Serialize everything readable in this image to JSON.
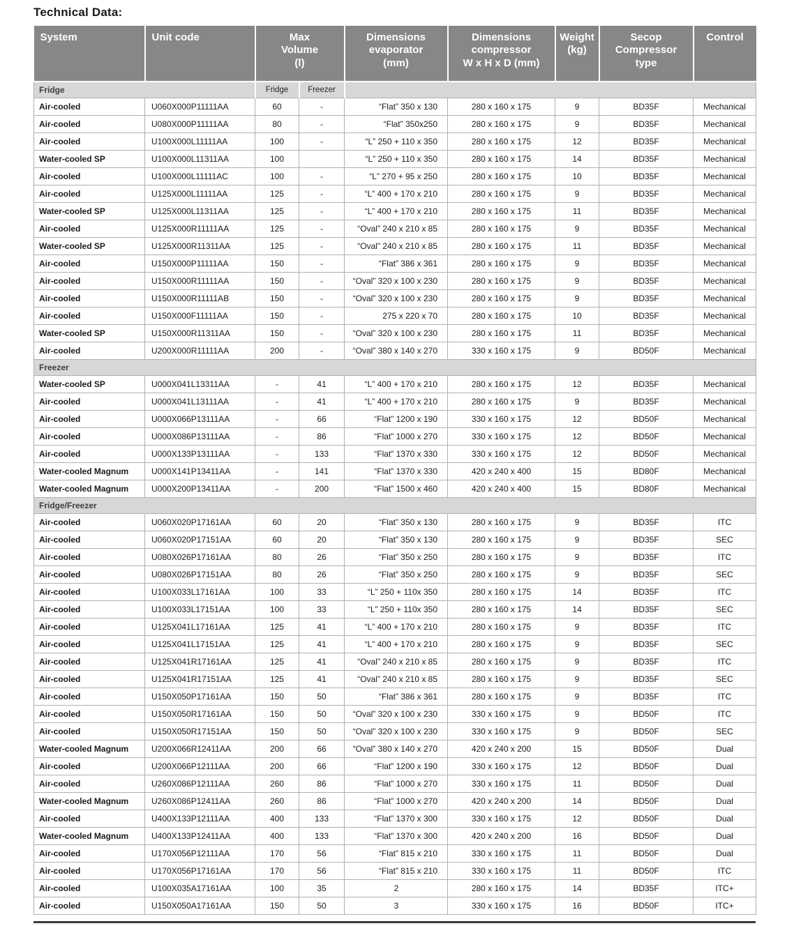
{
  "page_title": "Technical Data:",
  "colors": {
    "header_bg": "#878787",
    "header_text": "#ffffff",
    "section_band_bg": "#d7d7d7",
    "grid_border": "#b0b0b0",
    "body_text": "#1a1a1a",
    "system_text": "#4b4b4b"
  },
  "table": {
    "header": {
      "system": "System",
      "unit_code": "Unit code",
      "max_volume": "Max\nVolume\n(l)",
      "dim_evaporator": "Dimensions\nevaporator\n(mm)",
      "dim_compressor": "Dimensions\ncompressor\nW x H x D (mm)",
      "weight": "Weight\n(kg)",
      "compressor_type": "Secop\nCompressor\ntype",
      "control": "Control"
    },
    "row_fields": [
      "system",
      "unit_code",
      "max_volume_fridge_l",
      "max_volume_freezer_l",
      "dimensions_evaporator_mm",
      "dimensions_compressor_mm",
      "weight_kg",
      "secop_compressor_type",
      "control"
    ],
    "sections": [
      {
        "label": "Fridge",
        "sublabels": {
          "fridge": "Fridge",
          "freezer": "Freezer"
        },
        "rows": [
          [
            "Air-cooled",
            "U060X000P11111AA",
            "60",
            "-",
            "“Flat” 350 x 130",
            "280 x 160 x 175",
            "9",
            "BD35F",
            "Mechanical"
          ],
          [
            "Air-cooled",
            "U080X000P11111AA",
            "80",
            "-",
            "“Flat” 350x250",
            "280 x 160 x 175",
            "9",
            "BD35F",
            "Mechanical"
          ],
          [
            "Air-cooled",
            "U100X000L11111AA",
            "100",
            "-",
            "“L” 250 + 110 x 350",
            "280 x 160 x 175",
            "12",
            "BD35F",
            "Mechanical"
          ],
          [
            "Water-cooled SP",
            "U100X000L11311AA",
            "100",
            "",
            "“L” 250 + 110 x 350",
            "280 x 160 x 175",
            "14",
            "BD35F",
            "Mechanical"
          ],
          [
            "Air-cooled",
            "U100X000L11111AC",
            "100",
            "-",
            "“L” 270 + 95 x 250",
            "280 x 160 x 175",
            "10",
            "BD35F",
            "Mechanical"
          ],
          [
            "Air-cooled",
            "U125X000L11111AA",
            "125",
            "-",
            "“L” 400 + 170 x 210",
            "280 x 160 x 175",
            "9",
            "BD35F",
            "Mechanical"
          ],
          [
            "Water-cooled SP",
            "U125X000L11311AA",
            "125",
            "-",
            "“L” 400 + 170 x 210",
            "280 x 160 x 175",
            "11",
            "BD35F",
            "Mechanical"
          ],
          [
            "Air-cooled",
            "U125X000R11111AA",
            "125",
            "-",
            "“Oval” 240 x 210 x 85",
            "280 x 160 x 175",
            "9",
            "BD35F",
            "Mechanical"
          ],
          [
            "Water-cooled SP",
            "U125X000R11311AA",
            "125",
            "-",
            "“Oval” 240 x 210 x 85",
            "280 x 160 x 175",
            "11",
            "BD35F",
            "Mechanical"
          ],
          [
            "Air-cooled",
            "U150X000P11111AA",
            "150",
            "-",
            "“Flat” 386 x 361",
            "280 x 160 x 175",
            "9",
            "BD35F",
            "Mechanical"
          ],
          [
            "Air-cooled",
            "U150X000R11111AA",
            "150",
            "-",
            "“Oval” 320 x 100 x 230",
            "280 x 160 x 175",
            "9",
            "BD35F",
            "Mechanical"
          ],
          [
            "Air-cooled",
            "U150X000R11111AB",
            "150",
            "-",
            "“Oval” 320 x 100 x 230",
            "280 x 160 x 175",
            "9",
            "BD35F",
            "Mechanical"
          ],
          [
            "Air-cooled",
            "U150X000F11111AA",
            "150",
            "-",
            "275 x 220 x 70",
            "280 x 160 x 175",
            "10",
            "BD35F",
            "Mechanical"
          ],
          [
            "Water-cooled SP",
            "U150X000R11311AA",
            "150",
            "-",
            "“Oval” 320 x 100 x 230",
            "280 x 160 x 175",
            "11",
            "BD35F",
            "Mechanical"
          ],
          [
            "Air-cooled",
            "U200X000R11111AA",
            "200",
            "-",
            "“Oval” 380 x 140 x 270",
            "330 x 160 x 175",
            "9",
            "BD50F",
            "Mechanical"
          ]
        ]
      },
      {
        "label": "Freezer",
        "rows": [
          [
            "Water-cooled SP",
            "U000X041L13311AA",
            "-",
            "41",
            "“L” 400 + 170 x 210",
            "280 x 160 x 175",
            "12",
            "BD35F",
            "Mechanical"
          ],
          [
            "Air-cooled",
            "U000X041L13111AA",
            "-",
            "41",
            "“L” 400 + 170 x 210",
            "280 x 160 x 175",
            "9",
            "BD35F",
            "Mechanical"
          ],
          [
            "Air-cooled",
            "U000X066P13111AA",
            "-",
            "66",
            "“Flat” 1200 x 190",
            "330 x 160 x 175",
            "12",
            "BD50F",
            "Mechanical"
          ],
          [
            "Air-cooled",
            "U000X086P13111AA",
            "-",
            "86",
            "“Flat” 1000 x 270",
            "330 x 160 x 175",
            "12",
            "BD50F",
            "Mechanical"
          ],
          [
            "Air-cooled",
            "U000X133P13111AA",
            "-",
            "133",
            "“Flat” 1370 x 330",
            "330 x 160 x 175",
            "12",
            "BD50F",
            "Mechanical"
          ],
          [
            "Water-cooled Magnum",
            "U000X141P13411AA",
            "-",
            "141",
            "“Flat” 1370 x 330",
            "420 x 240 x 400",
            "15",
            "BD80F",
            "Mechanical"
          ],
          [
            "Water-cooled Magnum",
            "U000X200P13411AA",
            "-",
            "200",
            "“Flat” 1500 x 460",
            "420 x 240 x 400",
            "15",
            "BD80F",
            "Mechanical"
          ]
        ]
      },
      {
        "label": "Fridge/Freezer",
        "rows": [
          [
            "Air-cooled",
            "U060X020P17161AA",
            "60",
            "20",
            "“Flat” 350 x 130",
            "280 x 160 x 175",
            "9",
            "BD35F",
            "ITC"
          ],
          [
            "Air-cooled",
            "U060X020P17151AA",
            "60",
            "20",
            "“Flat” 350 x 130",
            "280 x 160 x 175",
            "9",
            "BD35F",
            "SEC"
          ],
          [
            "Air-cooled",
            "U080X026P17161AA",
            "80",
            "26",
            "“Flat” 350 x 250",
            "280 x 160 x 175",
            "9",
            "BD35F",
            "ITC"
          ],
          [
            "Air-cooled",
            "U080X026P17151AA",
            "80",
            "26",
            "“Flat” 350 x 250",
            "280 x 160 x 175",
            "9",
            "BD35F",
            "SEC"
          ],
          [
            "Air-cooled",
            "U100X033L17161AA",
            "100",
            "33",
            "“L” 250 + 110x 350",
            "280 x 160 x 175",
            "14",
            "BD35F",
            "ITC"
          ],
          [
            "Air-cooled",
            "U100X033L17151AA",
            "100",
            "33",
            "“L” 250 + 110x 350",
            "280 x 160 x 175",
            "14",
            "BD35F",
            "SEC"
          ],
          [
            "Air-cooled",
            "U125X041L17161AA",
            "125",
            "41",
            "“L” 400 + 170 x 210",
            "280 x 160 x 175",
            "9",
            "BD35F",
            "ITC"
          ],
          [
            "Air-cooled",
            "U125X041L17151AA",
            "125",
            "41",
            "“L” 400 + 170 x 210",
            "280 x 160 x 175",
            "9",
            "BD35F",
            "SEC"
          ],
          [
            "Air-cooled",
            "U125X041R17161AA",
            "125",
            "41",
            "“Oval” 240 x 210 x 85",
            "280 x 160 x 175",
            "9",
            "BD35F",
            "ITC"
          ],
          [
            "Air-cooled",
            "U125X041R17151AA",
            "125",
            "41",
            "“Oval” 240 x 210 x 85",
            "280 x 160 x 175",
            "9",
            "BD35F",
            "SEC"
          ],
          [
            "Air-cooled",
            "U150X050P17161AA",
            "150",
            "50",
            "“Flat” 386 x 361",
            "280 x 160 x 175",
            "9",
            "BD35F",
            "ITC"
          ],
          [
            "Air-cooled",
            "U150X050R17161AA",
            "150",
            "50",
            "“Oval” 320 x 100 x 230",
            "330 x 160 x 175",
            "9",
            "BD50F",
            "ITC"
          ],
          [
            "Air-cooled",
            "U150X050R17151AA",
            "150",
            "50",
            "“Oval” 320 x 100 x 230",
            "330 x 160 x 175",
            "9",
            "BD50F",
            "SEC"
          ],
          [
            "Water-cooled Magnum",
            "U200X066R12411AA",
            "200",
            "66",
            "“Oval” 380 x 140 x 270",
            "420 x 240 x 200",
            "15",
            "BD50F",
            "Dual"
          ],
          [
            "Air-cooled",
            "U200X066P12111AA",
            "200",
            "66",
            "“Flat” 1200 x 190",
            "330 x 160 x 175",
            "12",
            "BD50F",
            "Dual"
          ],
          [
            "Air-cooled",
            "U260X086P12111AA",
            "260",
            "86",
            "“Flat” 1000 x 270",
            "330 x 160 x 175",
            "11",
            "BD50F",
            "Dual"
          ],
          [
            "Water-cooled Magnum",
            "U260X086P12411AA",
            "260",
            "86",
            "“Flat” 1000 x 270",
            "420 x 240 x 200",
            "14",
            "BD50F",
            "Dual"
          ],
          [
            "Air-cooled",
            "U400X133P12111AA",
            "400",
            "133",
            "“Flat” 1370 x 300",
            "330 x 160 x 175",
            "12",
            "BD50F",
            "Dual"
          ],
          [
            "Water-cooled Magnum",
            "U400X133P12411AA",
            "400",
            "133",
            "“Flat” 1370 x 300",
            "420 x 240 x 200",
            "16",
            "BD50F",
            "Dual"
          ],
          [
            "Air-cooled",
            "U170X056P12111AA",
            "170",
            "56",
            "“Flat” 815 x 210",
            "330 x 160 x 175",
            "11",
            "BD50F",
            "Dual"
          ],
          [
            "Air-cooled",
            "U170X056P17161AA",
            "170",
            "56",
            "“Flat” 815 x 210",
            "330 x 160 x 175",
            "11",
            "BD50F",
            "ITC"
          ],
          [
            "Air-cooled",
            "U100X035A17161AA",
            "100",
            "35",
            "2",
            "280 x 160 x 175",
            "14",
            "BD35F",
            "ITC+"
          ],
          [
            "Air-cooled",
            "U150X050A17161AA",
            "150",
            "50",
            "3",
            "330 x 160 x 175",
            "16",
            "BD50F",
            "ITC+"
          ]
        ]
      }
    ]
  }
}
